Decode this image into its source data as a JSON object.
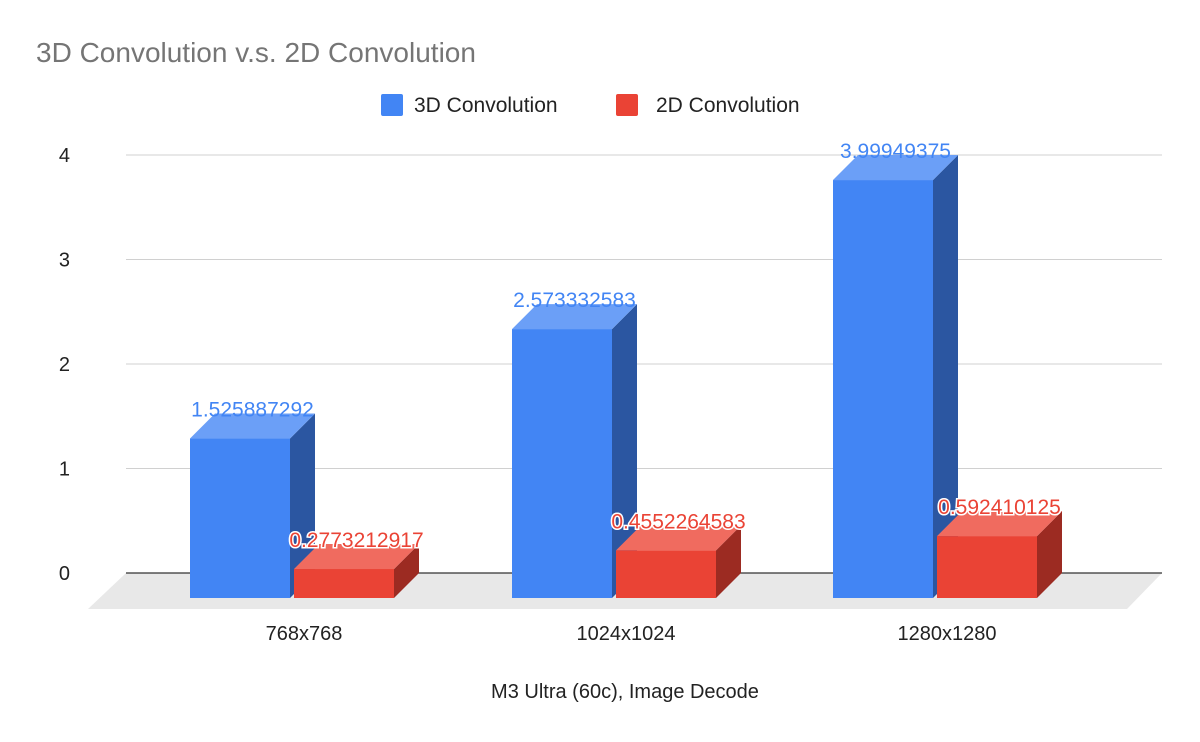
{
  "chart_data": {
    "type": "bar",
    "title": "3D Convolution v.s. 2D Convolution",
    "xlabel": "M3 Ultra (60c), Image Decode",
    "ylabel": "",
    "categories": [
      "768x768",
      "1024x1024",
      "1280x1280"
    ],
    "series": [
      {
        "name": "3D Convolution",
        "values": [
          1.525887292,
          2.573332583,
          3.99949375
        ],
        "labels": [
          "1.525887292",
          "2.573332583",
          "3.99949375"
        ],
        "color": "#4285f4",
        "side_color": "#2b56a1",
        "top_color": "#6b9ff7"
      },
      {
        "name": "2D Convolution",
        "values": [
          0.2773212917,
          0.4552264583,
          0.592410125
        ],
        "labels": [
          "0.2773212917",
          "0.4552264583",
          "0.592410125"
        ],
        "color": "#ea4335",
        "side_color": "#9c2b22",
        "top_color": "#f06b5f"
      }
    ],
    "y_ticks": [
      {
        "value": 0,
        "label": "0"
      },
      {
        "value": 1,
        "label": "1"
      },
      {
        "value": 2,
        "label": "2"
      },
      {
        "value": 3,
        "label": "3"
      },
      {
        "value": 4,
        "label": "4"
      }
    ],
    "ylim": [
      0,
      4
    ],
    "grid": true,
    "legend_position": "top",
    "style": "3d"
  }
}
